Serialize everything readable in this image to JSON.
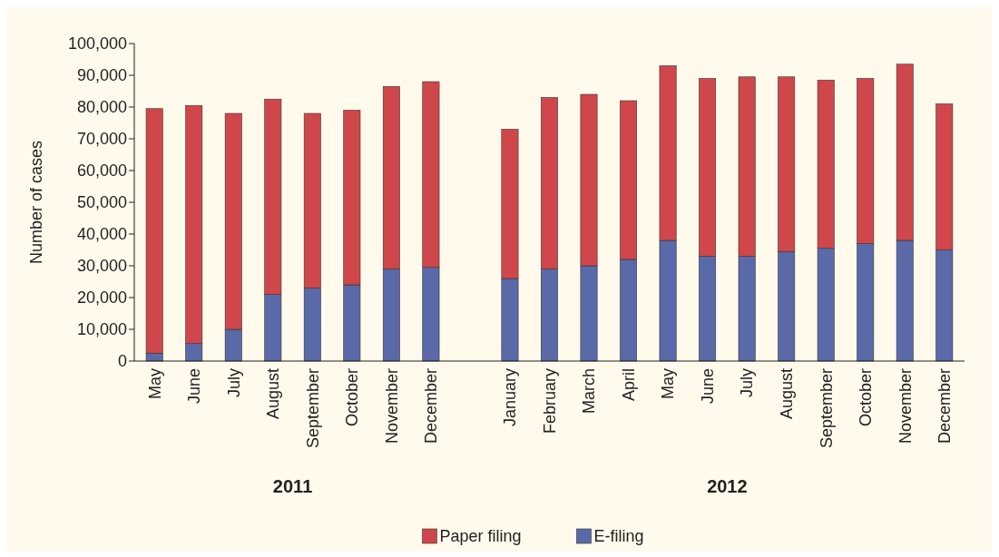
{
  "chart_data": {
    "type": "bar",
    "stacked": true,
    "ylabel": "Number of cases",
    "categories": [
      "May",
      "June",
      "July",
      "August",
      "September",
      "October",
      "November",
      "December",
      null,
      "January",
      "February",
      "March",
      "April",
      "May",
      "June",
      "July",
      "August",
      "September",
      "October",
      "November",
      "December"
    ],
    "series": [
      {
        "name": "E-filing",
        "color": "#5a6aa8",
        "values": [
          2500,
          5500,
          10000,
          21000,
          23000,
          24000,
          29000,
          29500,
          null,
          26000,
          29000,
          30000,
          32000,
          38000,
          33000,
          33000,
          34500,
          35500,
          37000,
          38000,
          35000
        ]
      },
      {
        "name": "Paper filing",
        "color": "#d0474b",
        "values": [
          77000,
          75000,
          68000,
          61500,
          55000,
          55000,
          57500,
          58500,
          null,
          47000,
          54000,
          54000,
          50000,
          55000,
          56000,
          56500,
          55000,
          53000,
          52000,
          55500,
          46000
        ]
      }
    ],
    "ylim": [
      0,
      100000
    ],
    "yticks": [
      0,
      {
        "value": 10000,
        "label": "10,000"
      },
      {
        "value": 20000,
        "label": "20,000"
      },
      {
        "value": 30000,
        "label": "30,000"
      },
      {
        "value": 40000,
        "label": "40,000"
      },
      {
        "value": 50000,
        "label": "50,000"
      },
      {
        "value": 60000,
        "label": "60,000"
      },
      {
        "value": 70000,
        "label": "70,000"
      },
      {
        "value": 80000,
        "label": "80,000"
      },
      {
        "value": 90000,
        "label": "90,000"
      },
      {
        "value": 100000,
        "label": "100,000"
      }
    ],
    "annotations": [
      "2011",
      "2012"
    ],
    "legend": "bottom",
    "grid": false
  }
}
